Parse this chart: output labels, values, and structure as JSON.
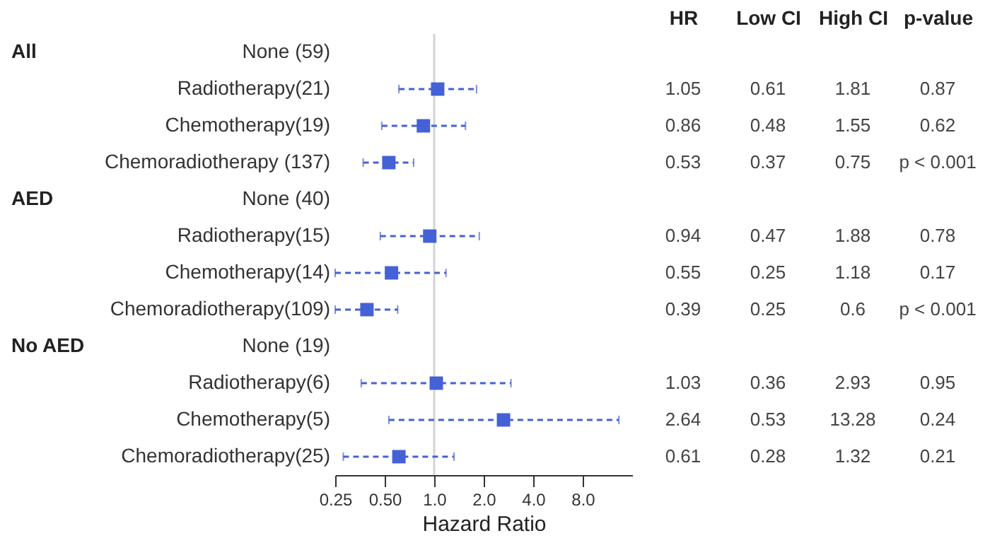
{
  "chart_data": {
    "type": "scatter",
    "orientation": "horizontal",
    "categories": [
      "None (59)",
      "Radiotherapy(21)",
      "Chemotherapy(19)",
      "Chemoradiotherapy (137)",
      "None (40)",
      "Radiotherapy(15)",
      "Chemotherapy(14)",
      "Chemoradiotherapy(109)",
      "None (19)",
      "Radiotherapy(6)",
      "Chemotherapy(5)",
      "Chemoradiotherapy(25)"
    ],
    "values": [
      null,
      1.05,
      0.86,
      0.53,
      null,
      0.94,
      0.55,
      0.39,
      null,
      1.03,
      2.64,
      0.61
    ],
    "errors": [
      null,
      [
        0.61,
        1.81
      ],
      [
        0.48,
        1.55
      ],
      [
        0.37,
        0.75
      ],
      null,
      [
        0.47,
        1.88
      ],
      [
        0.25,
        1.18
      ],
      [
        0.25,
        0.6
      ],
      null,
      [
        0.36,
        2.93
      ],
      [
        0.53,
        13.28
      ],
      [
        0.28,
        1.32
      ]
    ],
    "color": "#4561d6",
    "marker": "square",
    "line_style": "dashed",
    "data_labels": true,
    "log": "x",
    "xlim": [
      0.25,
      16
    ],
    "xticks": [
      0.25,
      {
        "value": 0.5,
        "label": "0.50"
      },
      {
        "value": 1,
        "label": "1.0"
      },
      {
        "value": 2,
        "label": "2.0"
      },
      {
        "value": 4,
        "label": "4.0"
      },
      {
        "value": 8,
        "label": "8.0"
      }
    ],
    "xlabel": "Hazard Ratio",
    "grid": false,
    "ref_lines": [
      {
        "axis": "x",
        "value": 1,
        "color": "#d4d4d4"
      }
    ],
    "annotations": [
      "HR",
      "Low CI",
      "High CI",
      "p-value",
      "All",
      "AED",
      "No AED",
      "0.61",
      "1.81",
      "0.87",
      "0.48",
      "1.55",
      "0.62",
      "0.37",
      "0.75",
      "p < 0.001",
      "0.47",
      "1.88",
      "0.78",
      "0.25",
      "1.18",
      "0.17",
      "0.25",
      "0.6",
      "p < 0.001",
      "0.36",
      "2.93",
      "0.95",
      "0.53",
      "13.28",
      "0.24",
      "0.28",
      "1.32",
      "0.21"
    ]
  }
}
